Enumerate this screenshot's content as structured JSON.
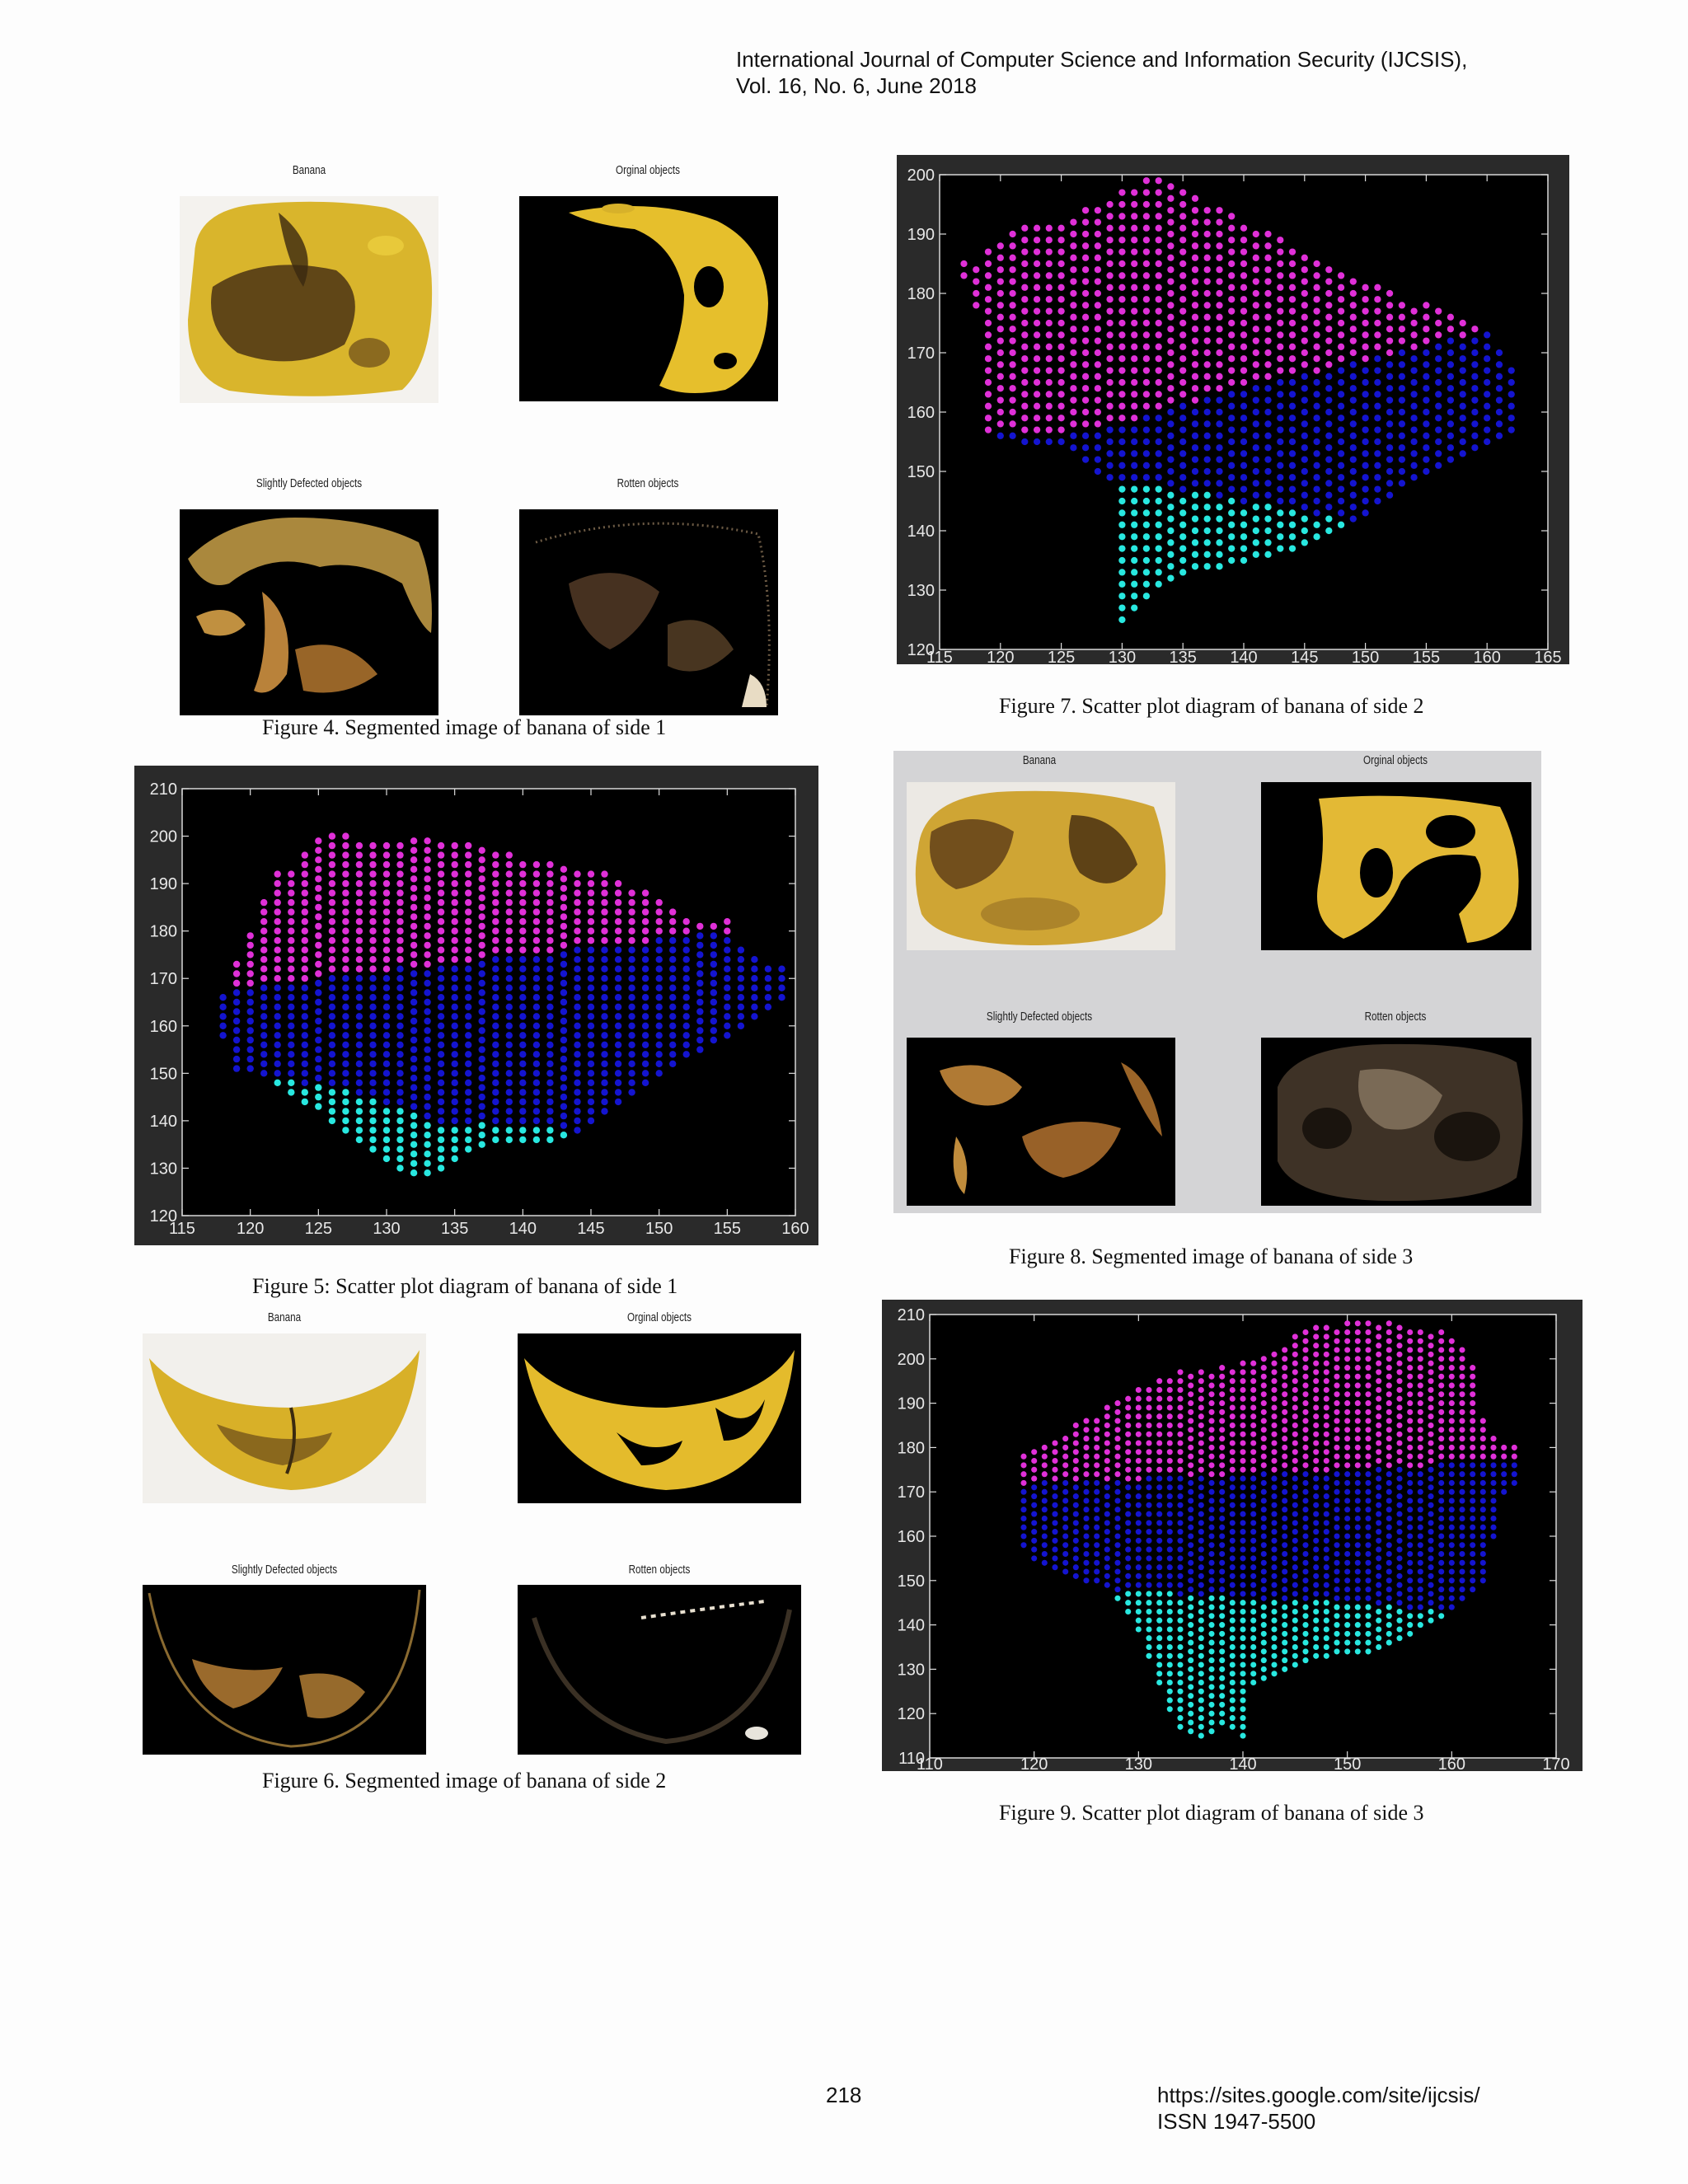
{
  "header": {
    "journal": "International Journal of Computer Science and Information Security (IJCSIS),",
    "volume": "Vol. 16, No. 6, June 2018"
  },
  "figures": {
    "fig4": {
      "caption": "Figure 4. Segmented image of banana of side 1",
      "labels": [
        "Banana",
        "Orginal objects",
        "Slightly Defected objects",
        "Rotten objects"
      ]
    },
    "fig5": {
      "caption": "Figure 5: Scatter plot diagram of banana of side 1"
    },
    "fig6": {
      "caption": "Figure 6. Segmented image of banana of side 2",
      "labels": [
        "Banana",
        "Orginal objects",
        "Slightly Defected objects",
        "Rotten objects"
      ]
    },
    "fig7": {
      "caption": "Figure 7. Scatter plot diagram of banana of side 2"
    },
    "fig8": {
      "caption": "Figure 8. Segmented image of banana of side 3",
      "labels": [
        "Banana",
        "Orginal objects",
        "Slightly Defected objects",
        "Rotten objects"
      ]
    },
    "fig9": {
      "caption": "Figure 9. Scatter plot diagram of banana of side 3"
    }
  },
  "footer": {
    "page_number": "218",
    "url": "https://sites.google.com/site/ijcsis/",
    "issn": "ISSN 1947-5500"
  },
  "chart_data": [
    {
      "id": "fig5",
      "type": "scatter",
      "xlim": [
        115,
        160
      ],
      "ylim": [
        120,
        210
      ],
      "xticks": [
        115,
        120,
        125,
        130,
        135,
        140,
        145,
        150,
        155,
        160
      ],
      "yticks": [
        120,
        130,
        140,
        150,
        160,
        170,
        180,
        190,
        200,
        210
      ],
      "grid": false,
      "colors": {
        "upper": "#e030d8",
        "middle": "#1414d0",
        "lower": "#28e8e0",
        "background": "#000000"
      },
      "columns": [
        {
          "x": 118,
          "low": 158,
          "high": 167
        },
        {
          "x": 119,
          "low": 151,
          "high": 173
        },
        {
          "x": 120,
          "low": 151,
          "high": 179
        },
        {
          "x": 121,
          "low": 150,
          "high": 187
        },
        {
          "x": 122,
          "low": 148,
          "high": 192
        },
        {
          "x": 123,
          "low": 146,
          "high": 193
        },
        {
          "x": 124,
          "low": 144,
          "high": 196
        },
        {
          "x": 125,
          "low": 143,
          "high": 199
        },
        {
          "x": 126,
          "low": 140,
          "high": 201
        },
        {
          "x": 127,
          "low": 138,
          "high": 200
        },
        {
          "x": 128,
          "low": 136,
          "high": 199
        },
        {
          "x": 129,
          "low": 134,
          "high": 199
        },
        {
          "x": 130,
          "low": 132,
          "high": 199
        },
        {
          "x": 131,
          "low": 130,
          "high": 199
        },
        {
          "x": 132,
          "low": 129,
          "high": 199
        },
        {
          "x": 133,
          "low": 129,
          "high": 199
        },
        {
          "x": 134,
          "low": 130,
          "high": 199
        },
        {
          "x": 135,
          "low": 132,
          "high": 198
        },
        {
          "x": 136,
          "low": 134,
          "high": 198
        },
        {
          "x": 137,
          "low": 135,
          "high": 197
        },
        {
          "x": 138,
          "low": 136,
          "high": 196
        },
        {
          "x": 139,
          "low": 136,
          "high": 196
        },
        {
          "x": 140,
          "low": 136,
          "high": 195
        },
        {
          "x": 141,
          "low": 136,
          "high": 195
        },
        {
          "x": 142,
          "low": 136,
          "high": 194
        },
        {
          "x": 143,
          "low": 137,
          "high": 194
        },
        {
          "x": 144,
          "low": 138,
          "high": 193
        },
        {
          "x": 145,
          "low": 140,
          "high": 192
        },
        {
          "x": 146,
          "low": 142,
          "high": 192
        },
        {
          "x": 147,
          "low": 144,
          "high": 191
        },
        {
          "x": 148,
          "low": 146,
          "high": 189
        },
        {
          "x": 149,
          "low": 148,
          "high": 188
        },
        {
          "x": 150,
          "low": 150,
          "high": 186
        },
        {
          "x": 151,
          "low": 152,
          "high": 184
        },
        {
          "x": 152,
          "low": 154,
          "high": 183
        },
        {
          "x": 153,
          "low": 155,
          "high": 182
        },
        {
          "x": 154,
          "low": 157,
          "high": 182
        },
        {
          "x": 155,
          "low": 158,
          "high": 182
        },
        {
          "x": 156,
          "low": 160,
          "high": 176
        },
        {
          "x": 157,
          "low": 162,
          "high": 174
        },
        {
          "x": 158,
          "low": 164,
          "high": 173
        },
        {
          "x": 159,
          "low": 166,
          "high": 173
        }
      ],
      "upper_boundary": [
        [
          118,
          168
        ],
        [
          159,
          181
        ]
      ],
      "lower_boundary": [
        [
          118,
          151
        ],
        [
          121,
          149
        ],
        [
          126,
          147
        ],
        [
          134,
          140
        ],
        [
          140,
          139
        ],
        [
          144,
          138
        ],
        [
          148,
          145
        ],
        [
          159,
          163
        ]
      ]
    },
    {
      "id": "fig7",
      "type": "scatter",
      "xlim": [
        115,
        165
      ],
      "ylim": [
        120,
        200
      ],
      "xticks": [
        115,
        120,
        125,
        130,
        135,
        140,
        145,
        150,
        155,
        160,
        165
      ],
      "yticks": [
        120,
        130,
        140,
        150,
        160,
        170,
        180,
        190,
        200
      ],
      "grid": false,
      "colors": {
        "upper": "#e030d8",
        "middle": "#1414d0",
        "lower": "#28e8e0",
        "background": "#000000"
      },
      "columns": [
        {
          "x": 117,
          "low": 183,
          "high": 185
        },
        {
          "x": 118,
          "low": 178,
          "high": 185
        },
        {
          "x": 119,
          "low": 157,
          "high": 187
        },
        {
          "x": 120,
          "low": 156,
          "high": 189
        },
        {
          "x": 121,
          "low": 156,
          "high": 191
        },
        {
          "x": 122,
          "low": 155,
          "high": 192
        },
        {
          "x": 123,
          "low": 155,
          "high": 192
        },
        {
          "x": 124,
          "low": 155,
          "high": 192
        },
        {
          "x": 125,
          "low": 155,
          "high": 192
        },
        {
          "x": 126,
          "low": 154,
          "high": 193
        },
        {
          "x": 127,
          "low": 152,
          "high": 194
        },
        {
          "x": 128,
          "low": 150,
          "high": 195
        },
        {
          "x": 129,
          "low": 149,
          "high": 196
        },
        {
          "x": 130,
          "low": 125,
          "high": 197
        },
        {
          "x": 131,
          "low": 127,
          "high": 198
        },
        {
          "x": 132,
          "low": 129,
          "high": 199
        },
        {
          "x": 133,
          "low": 131,
          "high": 199
        },
        {
          "x": 134,
          "low": 132,
          "high": 198
        },
        {
          "x": 135,
          "low": 133,
          "high": 197
        },
        {
          "x": 136,
          "low": 134,
          "high": 196
        },
        {
          "x": 137,
          "low": 134,
          "high": 195
        },
        {
          "x": 138,
          "low": 134,
          "high": 194
        },
        {
          "x": 139,
          "low": 135,
          "high": 193
        },
        {
          "x": 140,
          "low": 135,
          "high": 192
        },
        {
          "x": 141,
          "low": 136,
          "high": 191
        },
        {
          "x": 142,
          "low": 136,
          "high": 190
        },
        {
          "x": 143,
          "low": 137,
          "high": 189
        },
        {
          "x": 144,
          "low": 137,
          "high": 188
        },
        {
          "x": 145,
          "low": 138,
          "high": 187
        },
        {
          "x": 146,
          "low": 139,
          "high": 186
        },
        {
          "x": 147,
          "low": 140,
          "high": 185
        },
        {
          "x": 148,
          "low": 141,
          "high": 184
        },
        {
          "x": 149,
          "low": 142,
          "high": 183
        },
        {
          "x": 150,
          "low": 143,
          "high": 182
        },
        {
          "x": 151,
          "low": 145,
          "high": 181
        },
        {
          "x": 152,
          "low": 146,
          "high": 180
        },
        {
          "x": 153,
          "low": 148,
          "high": 179
        },
        {
          "x": 154,
          "low": 149,
          "high": 178
        },
        {
          "x": 155,
          "low": 150,
          "high": 178
        },
        {
          "x": 156,
          "low": 151,
          "high": 177
        },
        {
          "x": 157,
          "low": 152,
          "high": 177
        },
        {
          "x": 158,
          "low": 153,
          "high": 176
        },
        {
          "x": 159,
          "low": 154,
          "high": 175
        },
        {
          "x": 160,
          "low": 155,
          "high": 174
        },
        {
          "x": 161,
          "low": 156,
          "high": 170
        },
        {
          "x": 162,
          "low": 157,
          "high": 168
        }
      ],
      "upper_boundary": [
        [
          118,
          156
        ],
        [
          128,
          157
        ],
        [
          140,
          164
        ],
        [
          162,
          175
        ]
      ],
      "lower_boundary": [
        [
          129,
          149
        ],
        [
          140,
          145
        ],
        [
          150,
          141
        ],
        [
          162,
          157
        ]
      ]
    },
    {
      "id": "fig9",
      "type": "scatter",
      "xlim": [
        110,
        170
      ],
      "ylim": [
        110,
        210
      ],
      "xticks": [
        110,
        120,
        130,
        140,
        150,
        160,
        170
      ],
      "yticks": [
        110,
        120,
        130,
        140,
        150,
        160,
        170,
        180,
        190,
        200,
        210
      ],
      "grid": false,
      "colors": {
        "upper": "#e030d8",
        "middle": "#1414d0",
        "lower": "#28e8e0",
        "background": "#000000"
      },
      "columns": [
        {
          "x": 119,
          "low": 158,
          "high": 178
        },
        {
          "x": 120,
          "low": 155,
          "high": 179
        },
        {
          "x": 121,
          "low": 154,
          "high": 180
        },
        {
          "x": 122,
          "low": 153,
          "high": 181
        },
        {
          "x": 123,
          "low": 152,
          "high": 183
        },
        {
          "x": 124,
          "low": 151,
          "high": 185
        },
        {
          "x": 125,
          "low": 150,
          "high": 186
        },
        {
          "x": 126,
          "low": 150,
          "high": 187
        },
        {
          "x": 127,
          "low": 149,
          "high": 189
        },
        {
          "x": 128,
          "low": 146,
          "high": 190
        },
        {
          "x": 129,
          "low": 143,
          "high": 192
        },
        {
          "x": 130,
          "low": 139,
          "high": 193
        },
        {
          "x": 131,
          "low": 133,
          "high": 194
        },
        {
          "x": 132,
          "low": 127,
          "high": 195
        },
        {
          "x": 133,
          "low": 121,
          "high": 196
        },
        {
          "x": 134,
          "low": 117,
          "high": 197
        },
        {
          "x": 135,
          "low": 116,
          "high": 197
        },
        {
          "x": 136,
          "low": 115,
          "high": 197
        },
        {
          "x": 137,
          "low": 116,
          "high": 197
        },
        {
          "x": 138,
          "low": 118,
          "high": 198
        },
        {
          "x": 139,
          "low": 117,
          "high": 198
        },
        {
          "x": 140,
          "low": 115,
          "high": 199
        },
        {
          "x": 141,
          "low": 127,
          "high": 200
        },
        {
          "x": 142,
          "low": 128,
          "high": 201
        },
        {
          "x": 143,
          "low": 129,
          "high": 202
        },
        {
          "x": 144,
          "low": 130,
          "high": 203
        },
        {
          "x": 145,
          "low": 131,
          "high": 205
        },
        {
          "x": 146,
          "low": 132,
          "high": 206
        },
        {
          "x": 147,
          "low": 133,
          "high": 207
        },
        {
          "x": 148,
          "low": 133,
          "high": 207
        },
        {
          "x": 149,
          "low": 134,
          "high": 207
        },
        {
          "x": 150,
          "low": 134,
          "high": 208
        },
        {
          "x": 151,
          "low": 134,
          "high": 208
        },
        {
          "x": 152,
          "low": 134,
          "high": 208
        },
        {
          "x": 153,
          "low": 135,
          "high": 208
        },
        {
          "x": 154,
          "low": 136,
          "high": 208
        },
        {
          "x": 155,
          "low": 137,
          "high": 207
        },
        {
          "x": 156,
          "low": 138,
          "high": 207
        },
        {
          "x": 157,
          "low": 140,
          "high": 206
        },
        {
          "x": 158,
          "low": 141,
          "high": 206
        },
        {
          "x": 159,
          "low": 142,
          "high": 206
        },
        {
          "x": 160,
          "low": 144,
          "high": 205
        },
        {
          "x": 161,
          "low": 146,
          "high": 203
        },
        {
          "x": 162,
          "low": 148,
          "high": 198
        },
        {
          "x": 163,
          "low": 150,
          "high": 186
        },
        {
          "x": 164,
          "low": 160,
          "high": 183
        },
        {
          "x": 165,
          "low": 170,
          "high": 180
        },
        {
          "x": 166,
          "low": 172,
          "high": 180
        }
      ],
      "upper_boundary": [
        [
          119,
          172
        ],
        [
          130,
          173
        ],
        [
          140,
          174
        ],
        [
          150,
          175
        ],
        [
          166,
          177
        ]
      ],
      "lower_boundary": [
        [
          119,
          152
        ],
        [
          128,
          148
        ],
        [
          140,
          146
        ],
        [
          150,
          145
        ],
        [
          160,
          143
        ],
        [
          166,
          145
        ]
      ]
    }
  ]
}
